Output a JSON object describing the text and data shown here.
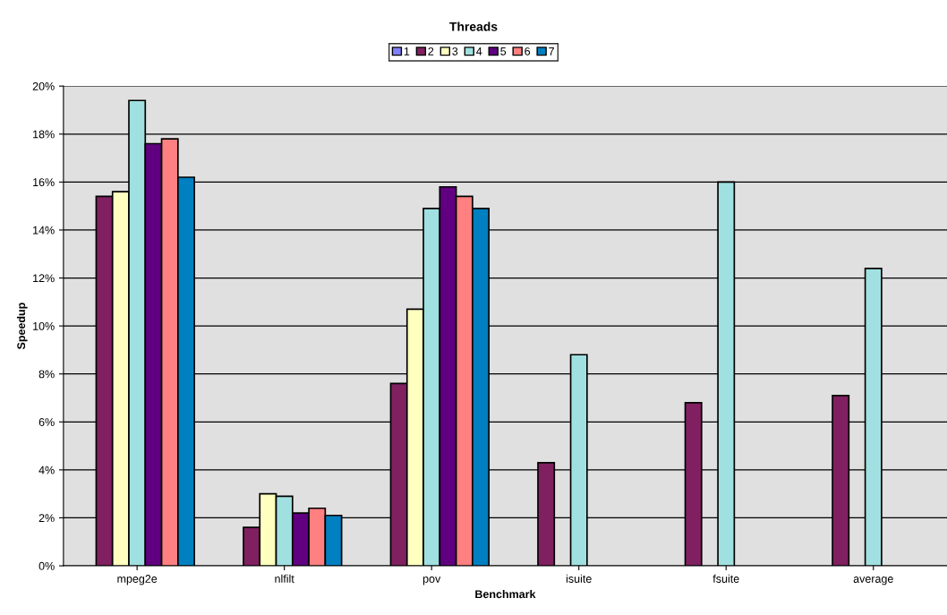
{
  "chart_data": {
    "type": "bar",
    "title": "Threads",
    "xlabel": "Benchmark",
    "ylabel": "Speedup",
    "categories": [
      "mpeg2e",
      "nlfilt",
      "pov",
      "isuite",
      "fsuite",
      "average"
    ],
    "series": [
      {
        "name": "1",
        "color": "#8080ff",
        "values": [
          null,
          null,
          null,
          null,
          null,
          null
        ]
      },
      {
        "name": "2",
        "color": "#802060",
        "values": [
          15.4,
          1.6,
          7.6,
          4.3,
          6.8,
          7.1
        ]
      },
      {
        "name": "3",
        "color": "#ffffc0",
        "values": [
          15.6,
          3.0,
          10.7,
          null,
          null,
          null
        ]
      },
      {
        "name": "4",
        "color": "#a0e0e0",
        "values": [
          19.4,
          2.9,
          14.9,
          8.8,
          16.0,
          12.4
        ]
      },
      {
        "name": "5",
        "color": "#600080",
        "values": [
          17.6,
          2.2,
          15.8,
          null,
          null,
          null
        ]
      },
      {
        "name": "6",
        "color": "#ff8080",
        "values": [
          17.8,
          2.4,
          15.4,
          null,
          null,
          null
        ]
      },
      {
        "name": "7",
        "color": "#0080c0",
        "values": [
          16.2,
          2.1,
          14.9,
          null,
          null,
          null
        ]
      }
    ],
    "ylim": [
      0,
      20
    ],
    "yticks": [
      {
        "value": 0,
        "label": "0%"
      },
      {
        "value": 2,
        "label": "2%"
      },
      {
        "value": 4,
        "label": "4%"
      },
      {
        "value": 6,
        "label": "6%"
      },
      {
        "value": 8,
        "label": "8%"
      },
      {
        "value": 10,
        "label": "10%"
      },
      {
        "value": 12,
        "label": "12%"
      },
      {
        "value": 14,
        "label": "14%"
      },
      {
        "value": 16,
        "label": "16%"
      },
      {
        "value": 18,
        "label": "18%"
      },
      {
        "value": 20,
        "label": "20%"
      }
    ],
    "grid": "y",
    "legend": "top"
  }
}
